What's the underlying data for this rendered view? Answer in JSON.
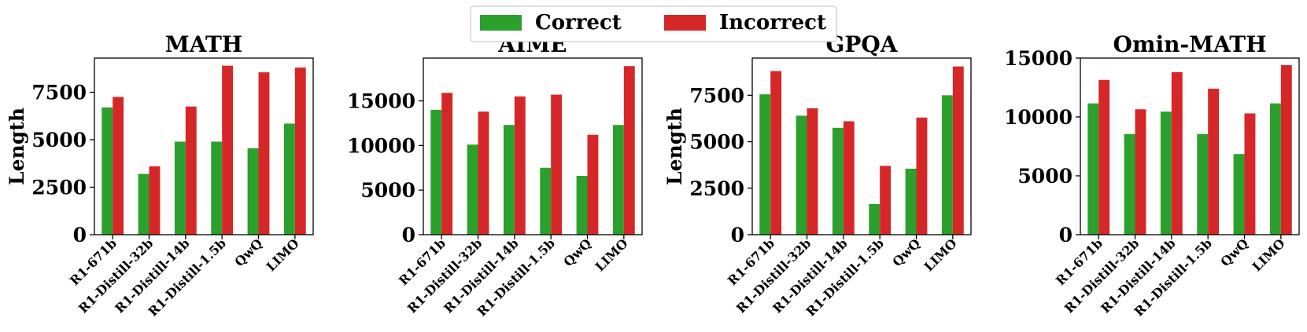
{
  "legend": {
    "correct_label": "Correct",
    "incorrect_label": "Incorrect",
    "correct_color": "#2ca02c",
    "incorrect_color": "#d62728",
    "placement": "top-center"
  },
  "chart_data": [
    {
      "type": "bar",
      "title": "MATH",
      "ylabel": "Length",
      "categories": [
        "R1-671b",
        "R1-Distill-32b",
        "R1-Distill-14b",
        "R1-Distill-1.5b",
        "QwQ",
        "LIMO"
      ],
      "series": [
        {
          "name": "Correct",
          "values": [
            6700,
            3200,
            4900,
            4900,
            4550,
            5850
          ]
        },
        {
          "name": "Incorrect",
          "values": [
            7250,
            3600,
            6750,
            8900,
            8550,
            8800
          ]
        }
      ],
      "ylim": [
        0,
        9300
      ],
      "yticks": [
        0,
        2500,
        5000,
        7500
      ]
    },
    {
      "type": "bar",
      "title": "AIME",
      "ylabel": "",
      "categories": [
        "R1-671b",
        "R1-Distill-32b",
        "R1-Distill-14b",
        "R1-Distill-1.5b",
        "QwQ",
        "LIMO"
      ],
      "series": [
        {
          "name": "Correct",
          "values": [
            14000,
            10100,
            12300,
            7500,
            6600,
            12300
          ]
        },
        {
          "name": "Incorrect",
          "values": [
            15900,
            13800,
            15500,
            15700,
            11200,
            18900
          ]
        }
      ],
      "ylim": [
        0,
        19800
      ],
      "yticks": [
        0,
        5000,
        10000,
        15000
      ]
    },
    {
      "type": "bar",
      "title": "GPQA",
      "ylabel": "Length",
      "categories": [
        "R1-671b",
        "R1-Distill-32b",
        "R1-Distill-14b",
        "R1-Distill-1.5b",
        "QwQ",
        "LIMO"
      ],
      "series": [
        {
          "name": "Correct",
          "values": [
            7550,
            6400,
            5750,
            1650,
            3550,
            7500
          ]
        },
        {
          "name": "Incorrect",
          "values": [
            8800,
            6800,
            6100,
            3700,
            6300,
            9050
          ]
        }
      ],
      "ylim": [
        0,
        9500
      ],
      "yticks": [
        0,
        2500,
        5000,
        7500
      ]
    },
    {
      "type": "bar",
      "title": "Omin-MATH",
      "ylabel": "",
      "categories": [
        "R1-671b",
        "R1-Distill-32b",
        "R1-Distill-14b",
        "R1-Distill-1.5b",
        "QwQ",
        "LIMO"
      ],
      "series": [
        {
          "name": "Correct",
          "values": [
            11150,
            8550,
            10450,
            8550,
            6850,
            11150
          ]
        },
        {
          "name": "Incorrect",
          "values": [
            13150,
            10650,
            13800,
            12400,
            10300,
            14400
          ]
        }
      ],
      "ylim": [
        0,
        15000
      ],
      "yticks": [
        0,
        5000,
        10000,
        15000
      ]
    }
  ]
}
